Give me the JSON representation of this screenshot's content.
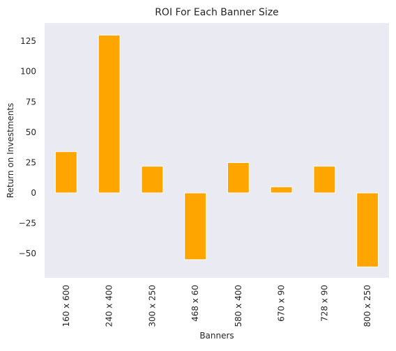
{
  "chart_data": {
    "type": "bar",
    "title": "ROI For Each Banner Size",
    "xlabel": "Banners",
    "ylabel": "Return on Investments",
    "categories": [
      "160 x 600",
      "240 x 400",
      "300 x 250",
      "468 x 60",
      "580 x 400",
      "670 x 90",
      "728 x 90",
      "800 x 250"
    ],
    "values": [
      34,
      130,
      22,
      -55,
      25,
      5,
      22,
      -61
    ],
    "ylim": [
      -70,
      140
    ],
    "yticks": [
      -50,
      -25,
      0,
      25,
      50,
      75,
      100,
      125
    ],
    "ytick_labels": [
      "−50",
      "−25",
      "0",
      "25",
      "50",
      "75",
      "100",
      "125"
    ],
    "grid": false,
    "colors": {
      "bar": "#ffa500",
      "bar_edge": "#ffffff",
      "plot_background": "#eaeaf2",
      "text": "#262626"
    }
  }
}
